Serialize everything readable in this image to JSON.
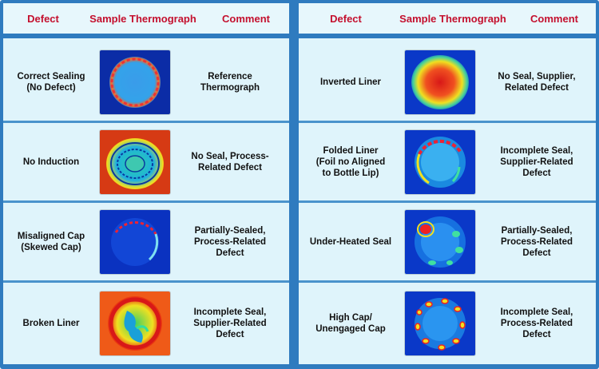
{
  "headers": {
    "defect": "Defect",
    "sample": "Sample Thermograph",
    "comment": "Comment"
  },
  "left_rows": [
    {
      "defect": [
        "Correct Sealing",
        "(No Defect)"
      ],
      "comment": [
        "Reference",
        "Thermograph"
      ],
      "thumb": "correct-sealing-thermograph"
    },
    {
      "defect": [
        "No Induction"
      ],
      "comment": [
        "No Seal, Process-",
        "Related Defect"
      ],
      "thumb": "no-induction-thermograph"
    },
    {
      "defect": [
        "Misaligned Cap",
        "(Skewed Cap)"
      ],
      "comment": [
        "Partially-Sealed,",
        "Process-Related",
        "Defect"
      ],
      "thumb": "misaligned-cap-thermograph"
    },
    {
      "defect": [
        "Broken Liner"
      ],
      "comment": [
        "Incomplete Seal,",
        "Supplier-Related",
        "Defect"
      ],
      "thumb": "broken-liner-thermograph"
    }
  ],
  "right_rows": [
    {
      "defect": [
        "Inverted Liner"
      ],
      "comment": [
        "No Seal, Supplier,",
        "Related Defect"
      ],
      "thumb": "inverted-liner-thermograph"
    },
    {
      "defect": [
        "Folded Liner",
        "(Foil no Aligned",
        "to Bottle Lip)"
      ],
      "comment": [
        "Incomplete Seal,",
        "Supplier-Related",
        "Defect"
      ],
      "thumb": "folded-liner-thermograph"
    },
    {
      "defect": [
        "Under-Heated Seal"
      ],
      "comment": [
        "Partially-Sealed,",
        "Process-Related",
        "Defect"
      ],
      "thumb": "under-heated-seal-thermograph"
    },
    {
      "defect": [
        "High Cap/",
        "Unengaged Cap"
      ],
      "comment": [
        "Incomplete Seal,",
        "Process-Related",
        "Defect"
      ],
      "thumb": "high-cap-thermograph"
    }
  ],
  "colors": {
    "header_text": "#c4102e",
    "border": "#2f7bbf",
    "panel": "#dff4fb"
  }
}
